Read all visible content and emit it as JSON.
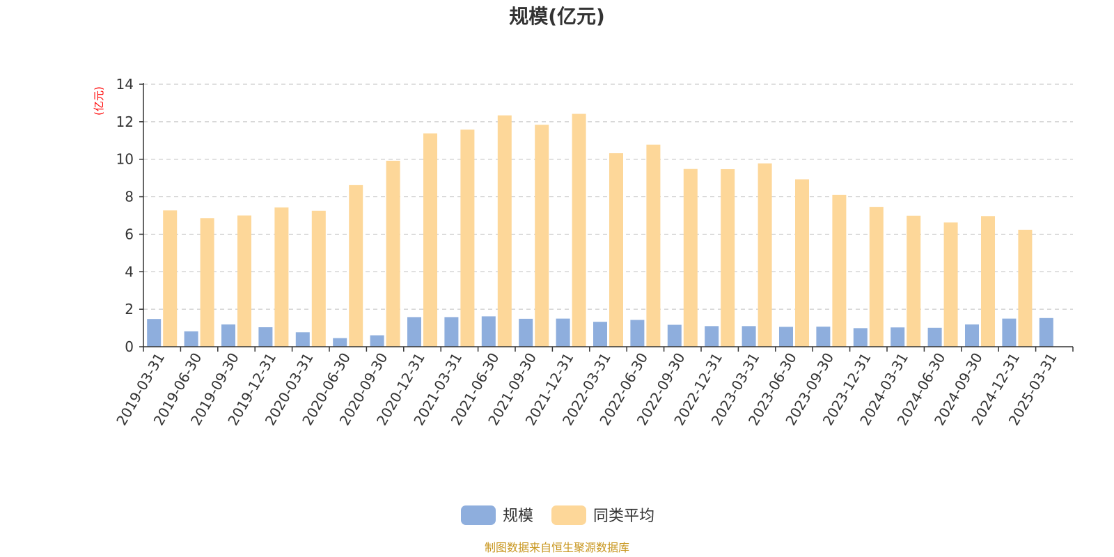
{
  "chart_data": {
    "type": "bar",
    "title": "规模(亿元)",
    "unit_label": "(亿元)",
    "ylim": [
      0,
      14
    ],
    "yticks": [
      0,
      2,
      4,
      6,
      8,
      10,
      12,
      14
    ],
    "grid": true,
    "legend_position": "bottom-center",
    "categories": [
      "2019-03-31",
      "2019-06-30",
      "2019-09-30",
      "2019-12-31",
      "2020-03-31",
      "2020-06-30",
      "2020-09-30",
      "2020-12-31",
      "2021-03-31",
      "2021-06-30",
      "2021-09-30",
      "2021-12-31",
      "2022-03-31",
      "2022-06-30",
      "2022-09-30",
      "2022-12-31",
      "2023-03-31",
      "2023-06-30",
      "2023-09-30",
      "2023-12-31",
      "2024-03-31",
      "2024-06-30",
      "2024-09-30",
      "2024-12-31",
      "2025-03-31"
    ],
    "series": [
      {
        "name": "规模",
        "color": "#8eaedd",
        "values": [
          1.48,
          0.82,
          1.19,
          1.04,
          0.77,
          0.46,
          0.61,
          1.58,
          1.58,
          1.62,
          1.49,
          1.5,
          1.33,
          1.43,
          1.17,
          1.1,
          1.1,
          1.06,
          1.07,
          0.99,
          1.03,
          1.01,
          1.19,
          1.5,
          1.53
        ]
      },
      {
        "name": "同类平均",
        "color": "#fdd799",
        "values": [
          7.27,
          6.86,
          7.0,
          7.43,
          7.25,
          8.62,
          9.92,
          11.38,
          11.58,
          12.34,
          11.84,
          12.42,
          10.32,
          10.78,
          9.48,
          9.47,
          9.78,
          8.93,
          8.1,
          7.46,
          6.99,
          6.63,
          6.97,
          6.24,
          null
        ]
      }
    ]
  },
  "footer": {
    "source": "制图数据来自恒生聚源数据库"
  }
}
